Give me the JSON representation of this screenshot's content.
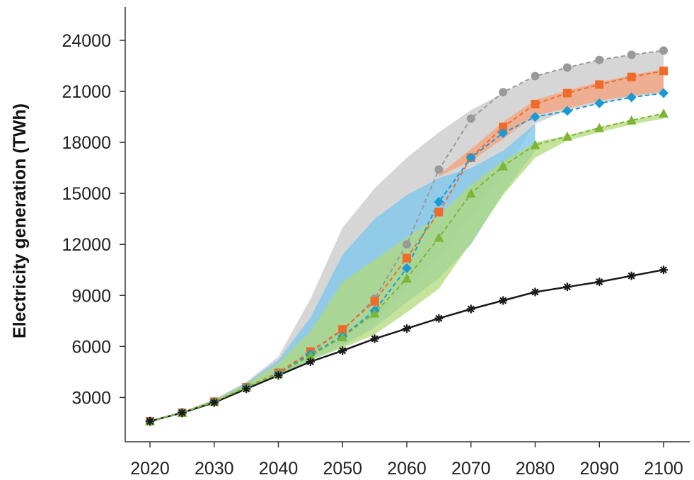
{
  "chart_data": {
    "type": "line",
    "title": "",
    "xlabel": "",
    "ylabel": "Electricity generation (TWh)",
    "xlim": [
      2017,
      2103
    ],
    "ylim": [
      800,
      25000
    ],
    "x_ticks": [
      2020,
      2030,
      2040,
      2050,
      2060,
      2070,
      2080,
      2090,
      2100
    ],
    "y_ticks": [
      3000,
      6000,
      9000,
      12000,
      15000,
      18000,
      21000,
      24000
    ],
    "grid": false,
    "legend": "none",
    "series": [
      {
        "key": "black-star",
        "color": "#1a1a1a",
        "marker": "star",
        "dash": "solid",
        "x": [
          2020,
          2025,
          2030,
          2035,
          2040,
          2045,
          2050,
          2055,
          2060,
          2065,
          2070,
          2075,
          2080,
          2085,
          2090,
          2095,
          2100
        ],
        "y": [
          1600,
          2100,
          2700,
          3500,
          4300,
          5100,
          5750,
          6450,
          7050,
          7650,
          8200,
          8700,
          9200,
          9500,
          9800,
          10150,
          10500
        ]
      },
      {
        "key": "gray-circle",
        "color": "#999999",
        "marker": "circle",
        "dash": "dashed",
        "x": [
          2020,
          2025,
          2030,
          2035,
          2040,
          2045,
          2050,
          2055,
          2060,
          2065,
          2070,
          2075,
          2080,
          2085,
          2090,
          2095,
          2100
        ],
        "y": [
          1600,
          2100,
          2750,
          3600,
          4450,
          5650,
          6950,
          8800,
          12000,
          16400,
          19400,
          20950,
          21900,
          22400,
          22850,
          23150,
          23400
        ]
      },
      {
        "key": "orange-square",
        "color": "#f06a2a",
        "marker": "square",
        "dash": "dashed",
        "x": [
          2020,
          2025,
          2030,
          2035,
          2040,
          2045,
          2050,
          2055,
          2060,
          2065,
          2070,
          2075,
          2080,
          2085,
          2090,
          2095,
          2100
        ],
        "y": [
          1600,
          2100,
          2750,
          3600,
          4450,
          5700,
          7000,
          8650,
          11200,
          13900,
          17100,
          18900,
          20250,
          20900,
          21400,
          21850,
          22200
        ]
      },
      {
        "key": "blue-diamond",
        "color": "#1a9ad6",
        "marker": "diamond",
        "dash": "dashed",
        "x": [
          2020,
          2025,
          2030,
          2035,
          2040,
          2045,
          2050,
          2055,
          2060,
          2065,
          2070,
          2075,
          2080,
          2085,
          2090,
          2095,
          2100
        ],
        "y": [
          1600,
          2100,
          2750,
          3600,
          4400,
          5550,
          6600,
          8100,
          10600,
          14500,
          17100,
          18550,
          19500,
          19850,
          20300,
          20650,
          20900
        ]
      },
      {
        "key": "green-triangle",
        "color": "#7db535",
        "marker": "triangle",
        "dash": "dashed",
        "x": [
          2020,
          2025,
          2030,
          2035,
          2040,
          2045,
          2050,
          2055,
          2060,
          2065,
          2070,
          2075,
          2080,
          2085,
          2090,
          2095,
          2100
        ],
        "y": [
          1600,
          2100,
          2750,
          3600,
          4400,
          5450,
          6550,
          7950,
          10000,
          12400,
          15000,
          16600,
          17850,
          18350,
          18850,
          19300,
          19700
        ]
      }
    ],
    "bands": [
      {
        "key": "gray-band",
        "color": "#c8c8c8",
        "opacity": 0.75,
        "x": [
          2020,
          2025,
          2030,
          2035,
          2040,
          2045,
          2050,
          2055,
          2060,
          2065,
          2070,
          2075,
          2080,
          2085,
          2090,
          2095,
          2100
        ],
        "upper": [
          1650,
          2150,
          2900,
          3900,
          5400,
          8800,
          13000,
          15300,
          17100,
          18600,
          19900,
          20900,
          21900,
          22400,
          22850,
          23150,
          23400
        ],
        "lower": [
          1550,
          2050,
          2650,
          3450,
          4300,
          5200,
          6100,
          7300,
          9500,
          11300,
          13600,
          16200,
          19100,
          19900,
          20300,
          20650,
          20900
        ]
      },
      {
        "key": "orange-band",
        "color": "#f5a07a",
        "opacity": 0.75,
        "x": [
          2065,
          2070,
          2075,
          2080,
          2085,
          2090,
          2095,
          2100
        ],
        "upper": [
          16100,
          17600,
          19200,
          20500,
          21050,
          21550,
          21950,
          22300
        ],
        "lower": [
          16000,
          16900,
          18200,
          19600,
          20000,
          20450,
          20750,
          21000
        ]
      },
      {
        "key": "blue-band",
        "color": "#7fc8ec",
        "opacity": 0.8,
        "x": [
          2020,
          2025,
          2030,
          2035,
          2040,
          2045,
          2050,
          2055,
          2060,
          2065,
          2070,
          2075,
          2080
        ],
        "upper": [
          1650,
          2150,
          2850,
          3850,
          5200,
          7700,
          11400,
          13500,
          14900,
          15900,
          16500,
          17500,
          19100
        ],
        "lower": [
          1550,
          2050,
          2650,
          3450,
          4300,
          5200,
          6000,
          7100,
          8600,
          10000,
          12000,
          15000,
          17500
        ]
      },
      {
        "key": "green-band",
        "color": "#b3d97a",
        "opacity": 0.75,
        "x": [
          2020,
          2025,
          2030,
          2035,
          2040,
          2045,
          2050,
          2055,
          2060,
          2065,
          2070,
          2075,
          2080,
          2085,
          2090,
          2095,
          2100
        ],
        "upper": [
          1650,
          2150,
          2850,
          3800,
          5000,
          6900,
          9800,
          11100,
          12400,
          13700,
          15500,
          16900,
          18000,
          18400,
          18900,
          19300,
          19700
        ],
        "lower": [
          1550,
          2050,
          2650,
          3450,
          4300,
          5200,
          5900,
          6700,
          8000,
          9400,
          12100,
          14900,
          17100,
          18100,
          18600,
          19050,
          19400
        ]
      }
    ]
  }
}
